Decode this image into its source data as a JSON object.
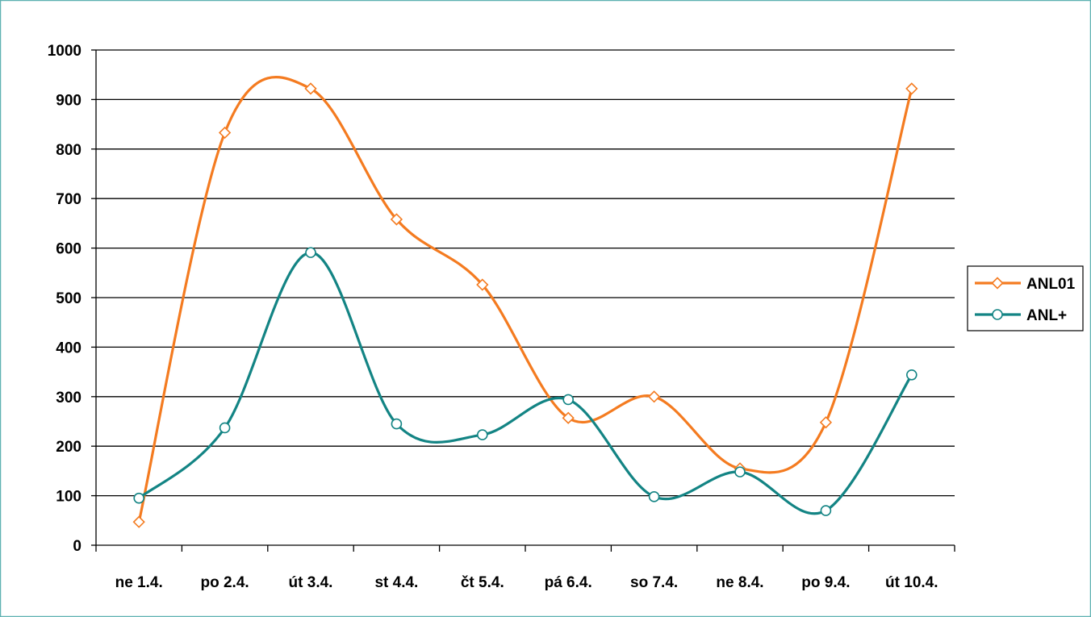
{
  "colors": {
    "series_anl01": "#F47B20",
    "series_anlplus": "#138484",
    "frame_border": "#5FB2B2",
    "grid": "#000000"
  },
  "chart_data": {
    "type": "line",
    "smooth": true,
    "title": "",
    "xlabel": "",
    "ylabel": "",
    "categories": [
      "ne 1.4.",
      "po 2.4.",
      "út 3.4.",
      "st 4.4.",
      "čt 5.4.",
      "pá 6.4.",
      "so 7.4.",
      "ne 8.4.",
      "po 9.4.",
      "út 10.4."
    ],
    "ylim": [
      0,
      1000
    ],
    "yticks": [
      0,
      100,
      200,
      300,
      400,
      500,
      600,
      700,
      800,
      900,
      1000
    ],
    "grid": "horizontal",
    "legend_position": "right",
    "series": [
      {
        "name": "ANL01",
        "marker": "diamond",
        "color_key": "series_anl01",
        "values": [
          47,
          833,
          922,
          658,
          526,
          257,
          300,
          155,
          248,
          922
        ]
      },
      {
        "name": "ANL+",
        "marker": "circle",
        "color_key": "series_anlplus",
        "values": [
          95,
          237,
          591,
          245,
          223,
          294,
          98,
          148,
          70,
          344
        ]
      }
    ]
  }
}
